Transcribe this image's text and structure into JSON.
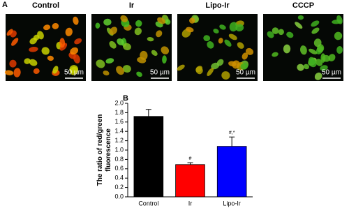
{
  "panel_a": {
    "label": "A",
    "images": [
      {
        "title": "Control",
        "scale_bar": "50 µm"
      },
      {
        "title": "Ir",
        "scale_bar": "50 µm"
      },
      {
        "title": "Lipo-Ir",
        "scale_bar": "50 µm"
      },
      {
        "title": "CCCP",
        "scale_bar": "50 µm"
      }
    ]
  },
  "panel_b_label": "B",
  "chart_data": {
    "type": "bar",
    "y_label": "The ratio of red/green fluorescence",
    "categories": [
      "Control",
      "Ir",
      "Lipo-Ir"
    ],
    "values": [
      1.72,
      0.69,
      1.08
    ],
    "errors": [
      0.15,
      0.04,
      0.2
    ],
    "colors": [
      "#000000",
      "#ff0000",
      "#0000ff"
    ],
    "annotations": [
      {
        "text": "#",
        "category": "Ir"
      },
      {
        "text": "#,*",
        "category": "Lipo-Ir"
      }
    ],
    "ylim": [
      0,
      2
    ],
    "yticks": [
      {
        "value": 0,
        "label": "0.0"
      },
      {
        "value": 0.2,
        "label": "0.2"
      },
      {
        "value": 0.4,
        "label": "0.4"
      },
      {
        "value": 0.6,
        "label": "0.6"
      },
      {
        "value": 0.8,
        "label": "0.8"
      },
      {
        "value": 1,
        "label": "1.0"
      },
      {
        "value": 1.2,
        "label": "1.2"
      },
      {
        "value": 1.4,
        "label": "1.4"
      },
      {
        "value": 1.6,
        "label": "1.6"
      },
      {
        "value": 1.8,
        "label": "1.8"
      },
      {
        "value": 2,
        "label": "2.0"
      }
    ]
  }
}
